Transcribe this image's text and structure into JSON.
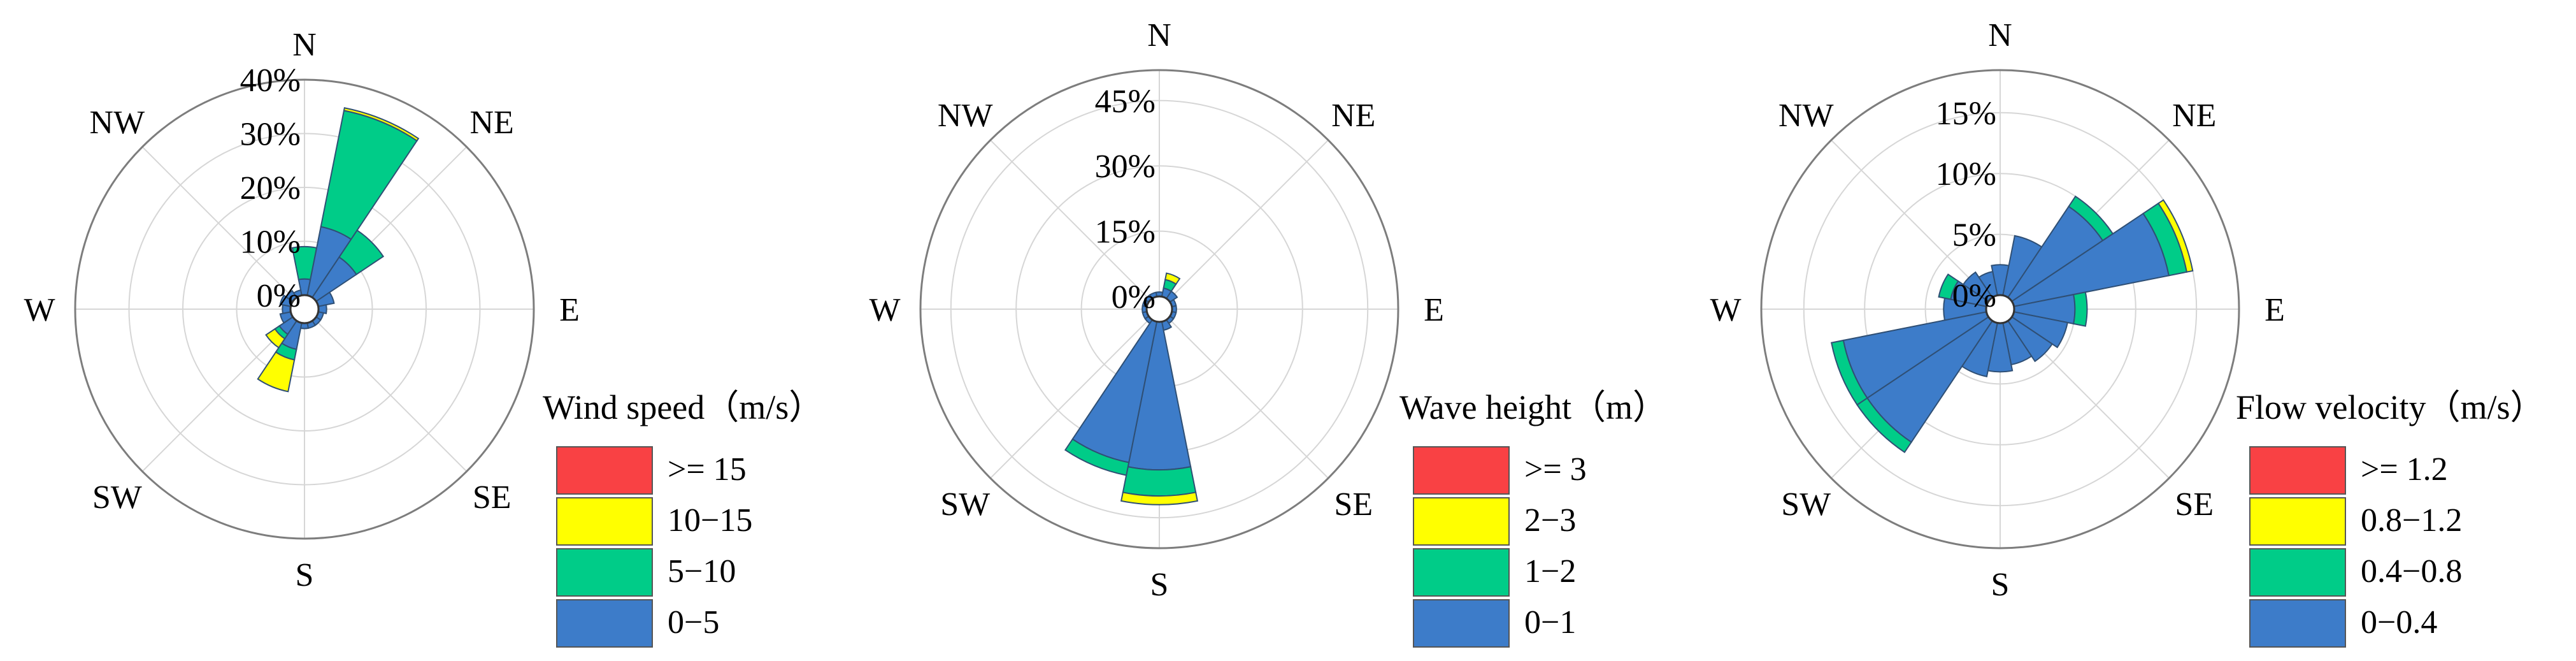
{
  "chart_data": [
    {
      "type": "windrose",
      "directions": [
        "N",
        "NE",
        "E",
        "SE",
        "S",
        "SW",
        "W",
        "NW"
      ],
      "sector_angles_deg": [
        0,
        22.5,
        45,
        67.5,
        90,
        112.5,
        135,
        157.5,
        180,
        202.5,
        225,
        247.5,
        270,
        292.5,
        315,
        337.5
      ],
      "radial_ticks": [
        "0%",
        "10%",
        "20%",
        "30%",
        "40%"
      ],
      "rmax": 40,
      "legend_title": "Wind speed（m/s）",
      "bins": [
        {
          "label": ">= 15",
          "color": "#f94144"
        },
        {
          "label": "10−15",
          "color": "#ffff00"
        },
        {
          "label": "5−10",
          "color": "#00cc88"
        },
        {
          "label": "0−5",
          "color": "#3d7cc9"
        }
      ],
      "sectors": [
        [
          3,
          6,
          0,
          0
        ],
        [
          13,
          22,
          0.5,
          0
        ],
        [
          9,
          6,
          0,
          0
        ],
        [
          3,
          0,
          0,
          0
        ],
        [
          1.5,
          0,
          0,
          0
        ],
        [
          1,
          0,
          0,
          0
        ],
        [
          1,
          0,
          0,
          0
        ],
        [
          1,
          0,
          0,
          0
        ],
        [
          1,
          0,
          0,
          0
        ],
        [
          5,
          2,
          6,
          0
        ],
        [
          3,
          1,
          2,
          0
        ],
        [
          2,
          0,
          0,
          0
        ],
        [
          1.5,
          0,
          0,
          0
        ],
        [
          2,
          0,
          0,
          0
        ],
        [
          1.5,
          0,
          0,
          0
        ],
        [
          1,
          0,
          0,
          0
        ]
      ]
    },
    {
      "type": "windrose",
      "directions": [
        "N",
        "NE",
        "E",
        "SE",
        "S",
        "SW",
        "W",
        "NW"
      ],
      "sector_angles_deg": [
        0,
        22.5,
        45,
        67.5,
        90,
        112.5,
        135,
        157.5,
        180,
        202.5,
        225,
        247.5,
        270,
        292.5,
        315,
        337.5
      ],
      "radial_ticks": [
        "0%",
        "15%",
        "30%",
        "45%"
      ],
      "rmax": 52,
      "legend_title": "Wave height（m）",
      "bins": [
        {
          "label": ">= 3",
          "color": "#f94144"
        },
        {
          "label": "2−3",
          "color": "#ffff00"
        },
        {
          "label": "1−2",
          "color": "#00cc88"
        },
        {
          "label": "0−1",
          "color": "#3d7cc9"
        }
      ],
      "sectors": [
        [
          1,
          0,
          0,
          0
        ],
        [
          2,
          2,
          1.5,
          0
        ],
        [
          2,
          0,
          0,
          0
        ],
        [
          1,
          0,
          0,
          0
        ],
        [
          1,
          0,
          0,
          0
        ],
        [
          1,
          0,
          0,
          0
        ],
        [
          1,
          0,
          0,
          0
        ],
        [
          2,
          0,
          0,
          0
        ],
        [
          34,
          6,
          2,
          0
        ],
        [
          33,
          3,
          0,
          0
        ],
        [
          1,
          0,
          0,
          0
        ],
        [
          1,
          0,
          0,
          0
        ],
        [
          1,
          0,
          0,
          0
        ],
        [
          1,
          0,
          0,
          0
        ],
        [
          1,
          0,
          0,
          0
        ],
        [
          1,
          0,
          0,
          0
        ]
      ]
    },
    {
      "type": "windrose",
      "directions": [
        "N",
        "NE",
        "E",
        "SE",
        "S",
        "SW",
        "W",
        "NW"
      ],
      "sector_angles_deg": [
        0,
        22.5,
        45,
        67.5,
        90,
        112.5,
        135,
        157.5,
        180,
        202.5,
        225,
        247.5,
        270,
        292.5,
        315,
        337.5
      ],
      "radial_ticks": [
        "0%",
        "5%",
        "10%",
        "15%"
      ],
      "rmax": 18.5,
      "legend_title": "Flow velocity（m/s）",
      "bins": [
        {
          "label": ">= 1.2",
          "color": "#f94144"
        },
        {
          "label": "0.8−1.2",
          "color": "#ffff00"
        },
        {
          "label": "0.4−0.8",
          "color": "#00cc88"
        },
        {
          "label": "0−0.4",
          "color": "#3d7cc9"
        }
      ],
      "sectors": [
        [
          2.5,
          0,
          0,
          0
        ],
        [
          5,
          0,
          0,
          0
        ],
        [
          9,
          1,
          0,
          0
        ],
        [
          13,
          1.5,
          0.5,
          0
        ],
        [
          5,
          1,
          0,
          0
        ],
        [
          4.5,
          0,
          0,
          0
        ],
        [
          4,
          0,
          0,
          0
        ],
        [
          3.5,
          0,
          0,
          0
        ],
        [
          4,
          0,
          0,
          0
        ],
        [
          4.5,
          0,
          0,
          0
        ],
        [
          12,
          1,
          0,
          0
        ],
        [
          12,
          1,
          0,
          0
        ],
        [
          3.5,
          0,
          0,
          0
        ],
        [
          3,
          1,
          0,
          0
        ],
        [
          2.5,
          0,
          0,
          0
        ],
        [
          2,
          0,
          0,
          0
        ]
      ]
    }
  ]
}
